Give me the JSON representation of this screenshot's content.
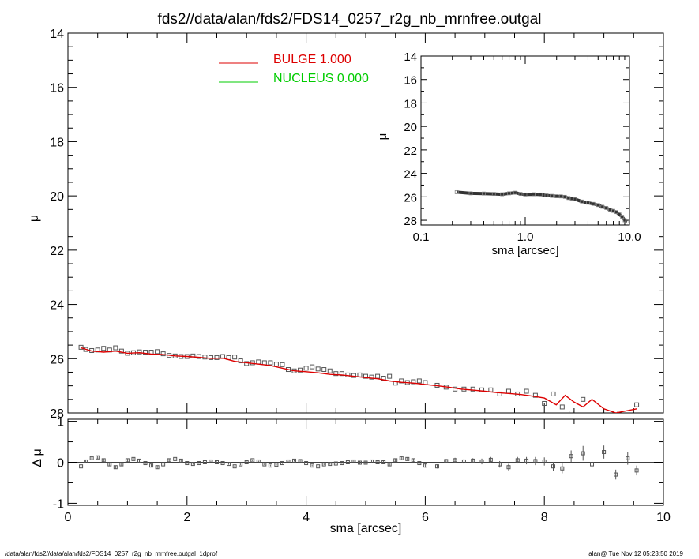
{
  "title": "fds2//data/alan/fds2/FDS14_0257_r2g_nb_mrnfree.outgal",
  "footer_left": "/data/alan/fds2//data/alan/fds2/FDS14_0257_r2g_nb_mrnfree.outgal_1dprof",
  "footer_right": "alan@  Tue Nov 12 05:23:50 2019",
  "colors": {
    "bulge": "#dd0000",
    "nucleus": "#00cc00",
    "data": "#555555",
    "axis": "#000000"
  },
  "chart_data": [
    {
      "type": "scatter",
      "panel": "main",
      "xlabel": "",
      "ylabel": "μ",
      "xlim": [
        0,
        10
      ],
      "ylim": [
        28,
        14
      ],
      "y_ticks": [
        14,
        16,
        18,
        20,
        22,
        24,
        26,
        28
      ],
      "legend_position": "top-center",
      "legend": [
        {
          "label": "BULGE  1.000",
          "color": "#dd0000"
        },
        {
          "label": "NUCLEUS  0.000",
          "color": "#00cc00"
        }
      ],
      "series": [
        {
          "name": "BULGE  1.000",
          "style": "line",
          "x": [
            0.22,
            0.4,
            0.6,
            0.8,
            1.0,
            1.2,
            1.4,
            1.6,
            1.8,
            2.0,
            2.2,
            2.4,
            2.6,
            2.8,
            3.0,
            3.2,
            3.4,
            3.6,
            3.8,
            4.0,
            4.2,
            4.4,
            4.6,
            4.8,
            5.0,
            5.2,
            5.4,
            5.6,
            5.8,
            6.0,
            6.2,
            6.4,
            6.6,
            6.8,
            7.0,
            7.2,
            7.4,
            7.6,
            7.8,
            8.0,
            8.2,
            8.35,
            8.5,
            8.65,
            8.8,
            9.0,
            9.2,
            9.55
          ],
          "y": [
            25.6,
            25.72,
            25.76,
            25.72,
            25.8,
            25.78,
            25.83,
            25.85,
            25.9,
            25.92,
            25.95,
            25.99,
            25.98,
            26.1,
            26.15,
            26.2,
            26.25,
            26.35,
            26.45,
            26.48,
            26.52,
            26.58,
            26.6,
            26.65,
            26.7,
            26.74,
            26.82,
            26.87,
            26.9,
            26.95,
            27.0,
            27.05,
            27.12,
            27.16,
            27.2,
            27.25,
            27.28,
            27.32,
            27.38,
            27.45,
            27.7,
            27.35,
            27.6,
            27.78,
            27.5,
            27.85,
            28.0,
            27.85
          ]
        },
        {
          "name": "data",
          "style": "markers",
          "x": [
            0.22,
            0.3,
            0.4,
            0.5,
            0.6,
            0.7,
            0.8,
            0.9,
            1.0,
            1.1,
            1.2,
            1.3,
            1.4,
            1.5,
            1.6,
            1.7,
            1.8,
            1.9,
            2.0,
            2.1,
            2.2,
            2.3,
            2.4,
            2.5,
            2.6,
            2.7,
            2.8,
            2.9,
            3.0,
            3.1,
            3.2,
            3.3,
            3.4,
            3.5,
            3.6,
            3.7,
            3.8,
            3.9,
            4.0,
            4.1,
            4.2,
            4.3,
            4.4,
            4.5,
            4.6,
            4.7,
            4.8,
            4.9,
            5.0,
            5.1,
            5.2,
            5.3,
            5.4,
            5.5,
            5.6,
            5.7,
            5.8,
            5.9,
            6.0,
            6.2,
            6.35,
            6.5,
            6.65,
            6.8,
            6.95,
            7.1,
            7.25,
            7.4,
            7.55,
            7.7,
            7.85,
            8.0,
            8.15,
            8.3,
            8.45,
            8.65,
            8.8,
            9.0,
            9.2,
            9.55
          ],
          "y": [
            25.58,
            25.66,
            25.7,
            25.68,
            25.62,
            25.68,
            25.6,
            25.72,
            25.8,
            25.78,
            25.75,
            25.76,
            25.76,
            25.74,
            25.82,
            25.88,
            25.9,
            25.92,
            25.92,
            25.9,
            25.92,
            25.94,
            25.96,
            25.96,
            25.92,
            25.96,
            25.94,
            26.08,
            26.18,
            26.15,
            26.12,
            26.15,
            26.15,
            26.2,
            26.22,
            26.4,
            26.45,
            26.42,
            26.35,
            26.3,
            26.38,
            26.4,
            26.45,
            26.55,
            26.55,
            26.6,
            26.62,
            26.6,
            26.65,
            26.68,
            26.65,
            26.72,
            26.65,
            26.9,
            26.82,
            26.88,
            26.85,
            26.82,
            26.88,
            26.98,
            27.05,
            27.12,
            27.12,
            27.12,
            27.15,
            27.15,
            27.3,
            27.2,
            27.3,
            27.2,
            27.35,
            27.65,
            27.3,
            27.78,
            28.0,
            27.5,
            28.2,
            28.3,
            28.0,
            27.7
          ]
        }
      ]
    },
    {
      "type": "scatter",
      "panel": "inset",
      "xlabel": "sma [arcsec]",
      "ylabel": "μ",
      "xscale": "log",
      "xlim": [
        0.1,
        10.0
      ],
      "x_tick_labels": [
        "0.1",
        "1.0",
        "10.0"
      ],
      "ylim": [
        28.4,
        14
      ],
      "y_ticks": [
        14,
        16,
        18,
        20,
        22,
        24,
        26,
        28
      ],
      "series": [
        {
          "name": "data",
          "style": "markers+line",
          "x": [
            0.22,
            0.3,
            0.4,
            0.5,
            0.6,
            0.7,
            0.8,
            0.9,
            1.0,
            1.2,
            1.4,
            1.6,
            1.8,
            2.0,
            2.2,
            2.4,
            2.6,
            2.8,
            3.0,
            3.5,
            4.0,
            4.5,
            5.0,
            5.5,
            6.0,
            6.5,
            7.0,
            7.5,
            8.0,
            8.5,
            9.0,
            9.5
          ],
          "y": [
            25.6,
            25.7,
            25.72,
            25.75,
            25.78,
            25.7,
            25.65,
            25.75,
            25.8,
            25.78,
            25.8,
            25.88,
            25.92,
            25.95,
            25.96,
            26.0,
            26.1,
            26.15,
            26.2,
            26.4,
            26.5,
            26.6,
            26.7,
            26.85,
            26.95,
            27.1,
            27.2,
            27.3,
            27.5,
            27.7,
            28.0,
            28.1
          ]
        }
      ]
    },
    {
      "type": "scatter",
      "panel": "residual",
      "xlabel": "sma [arcsec]",
      "ylabel": "Δ μ",
      "xlim": [
        0,
        10
      ],
      "x_ticks": [
        0,
        2,
        4,
        6,
        8,
        10
      ],
      "ylim": [
        -1.05,
        1.05
      ],
      "y_ticks": [
        1,
        0,
        -1
      ],
      "zero_line": true,
      "series": [
        {
          "name": "residual",
          "style": "markers+errorbars",
          "x": [
            0.22,
            0.3,
            0.4,
            0.5,
            0.6,
            0.7,
            0.8,
            0.9,
            1.0,
            1.1,
            1.2,
            1.3,
            1.4,
            1.5,
            1.6,
            1.7,
            1.8,
            1.9,
            2.0,
            2.1,
            2.2,
            2.3,
            2.4,
            2.5,
            2.6,
            2.7,
            2.8,
            2.9,
            3.0,
            3.1,
            3.2,
            3.3,
            3.4,
            3.5,
            3.6,
            3.7,
            3.8,
            3.9,
            4.0,
            4.1,
            4.2,
            4.3,
            4.4,
            4.5,
            4.6,
            4.7,
            4.8,
            4.9,
            5.0,
            5.1,
            5.2,
            5.3,
            5.4,
            5.5,
            5.6,
            5.7,
            5.8,
            5.9,
            6.0,
            6.2,
            6.35,
            6.5,
            6.65,
            6.8,
            6.95,
            7.1,
            7.25,
            7.4,
            7.55,
            7.7,
            7.85,
            8.0,
            8.15,
            8.3,
            8.45,
            8.65,
            8.8,
            9.0,
            9.2,
            9.4,
            9.55
          ],
          "y": [
            -0.1,
            0.02,
            0.1,
            0.12,
            0.05,
            -0.05,
            -0.12,
            -0.05,
            0.05,
            0.08,
            0.04,
            -0.02,
            -0.08,
            -0.12,
            -0.05,
            0.05,
            0.08,
            0.04,
            -0.02,
            -0.04,
            -0.02,
            0.0,
            0.02,
            0.0,
            -0.02,
            -0.04,
            -0.1,
            -0.05,
            0.0,
            0.05,
            0.02,
            -0.05,
            -0.08,
            -0.06,
            -0.02,
            0.02,
            0.04,
            0.03,
            -0.02,
            -0.08,
            -0.1,
            -0.05,
            -0.04,
            -0.03,
            -0.02,
            0.0,
            0.02,
            -0.01,
            -0.01,
            0.02,
            0.0,
            0.0,
            -0.05,
            0.05,
            0.1,
            0.08,
            0.05,
            -0.02,
            -0.08,
            -0.1,
            0.03,
            0.05,
            0.02,
            0.04,
            0.02,
            0.06,
            -0.05,
            -0.12,
            0.05,
            0.04,
            0.03,
            0.02,
            -0.1,
            -0.15,
            0.15,
            0.22,
            -0.05,
            0.25,
            -0.3,
            0.1,
            -0.2
          ],
          "err": [
            0.02,
            0.03,
            0.04,
            0.04,
            0.04,
            0.04,
            0.04,
            0.03,
            0.03,
            0.04,
            0.04,
            0.04,
            0.04,
            0.04,
            0.03,
            0.03,
            0.03,
            0.03,
            0.02,
            0.02,
            0.02,
            0.02,
            0.02,
            0.02,
            0.02,
            0.02,
            0.02,
            0.02,
            0.02,
            0.02,
            0.02,
            0.02,
            0.02,
            0.02,
            0.02,
            0.02,
            0.02,
            0.02,
            0.02,
            0.02,
            0.02,
            0.02,
            0.02,
            0.02,
            0.02,
            0.02,
            0.03,
            0.03,
            0.03,
            0.03,
            0.03,
            0.03,
            0.03,
            0.04,
            0.04,
            0.04,
            0.04,
            0.04,
            0.05,
            0.05,
            0.05,
            0.06,
            0.06,
            0.06,
            0.07,
            0.07,
            0.08,
            0.08,
            0.08,
            0.09,
            0.1,
            0.1,
            0.11,
            0.12,
            0.14,
            0.18,
            0.1,
            0.16,
            0.12,
            0.16,
            0.12
          ]
        }
      ]
    }
  ]
}
